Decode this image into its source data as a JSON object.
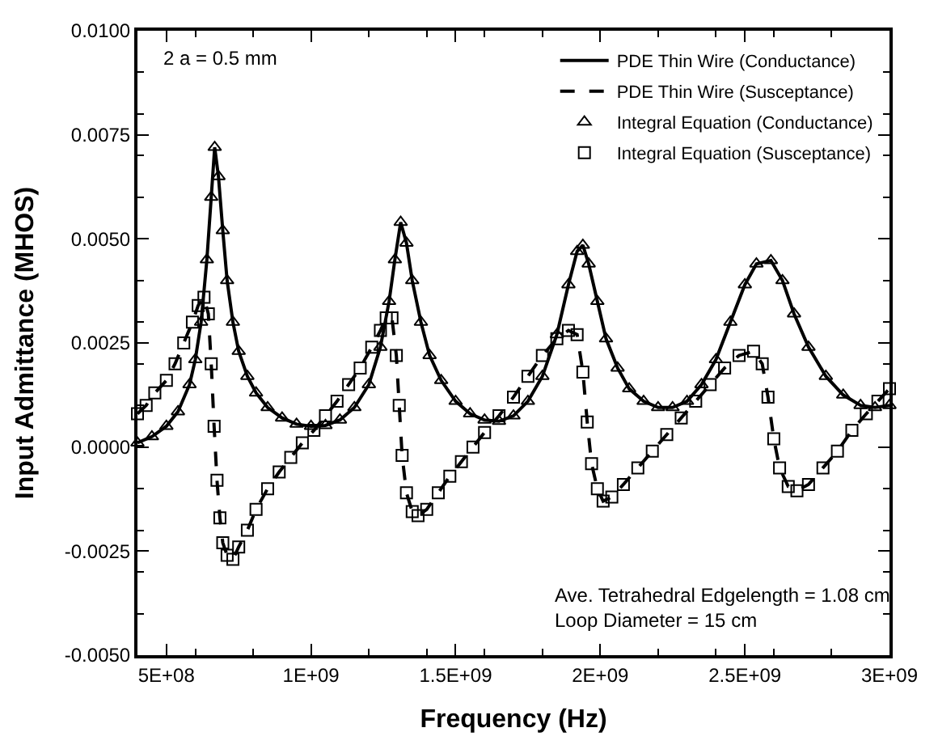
{
  "chart_data": {
    "type": "line",
    "xlabel": "Frequency (Hz)",
    "ylabel": "Input Admittance (MHOS)",
    "xlim": [
      400000000.0,
      3000000000.0
    ],
    "xticks": [
      {
        "value": 500000000.0,
        "label": "5E+08"
      },
      {
        "value": 1000000000.0,
        "label": "1E+09"
      },
      {
        "value": 1500000000.0,
        "label": "1.5E+09"
      },
      {
        "value": 2000000000.0,
        "label": "2E+09"
      },
      {
        "value": 2500000000.0,
        "label": "2.5E+09"
      },
      {
        "value": 3000000000.0,
        "label": "3E+09"
      }
    ],
    "ylim": [
      -0.005,
      0.01
    ],
    "yticks": [
      {
        "value": -0.005,
        "label": "-0.0050"
      },
      {
        "value": -0.0025,
        "label": "-0.0025"
      },
      {
        "value": 0,
        "label": "0.0000"
      },
      {
        "value": 0.0025,
        "label": "0.0025"
      },
      {
        "value": 0.005,
        "label": "0.0050"
      },
      {
        "value": 0.0075,
        "label": "0.0075"
      },
      {
        "value": 0.01,
        "label": "0.0100"
      }
    ],
    "legend": "top right",
    "annotations": [
      "2 a = 0.5 mm",
      "Ave. Tetrahedral Edgelength = 1.08 cm\nLoop Diameter = 15 cm"
    ],
    "series": [
      {
        "name": "PDE Thin Wire (Conductance)",
        "line_style": "solid",
        "marker": "none",
        "color": "#000000",
        "x": [
          400000000.0,
          450000000.0,
          500000000.0,
          540000000.0,
          580000000.0,
          600000000.0,
          620000000.0,
          640000000.0,
          655000000.0,
          667000000.0,
          680000000.0,
          695000000.0,
          710000000.0,
          730000000.0,
          750000000.0,
          780000000.0,
          810000000.0,
          850000000.0,
          900000000.0,
          950000000.0,
          1000000000.0,
          1050000000.0,
          1100000000.0,
          1150000000.0,
          1200000000.0,
          1240000000.0,
          1270000000.0,
          1290000000.0,
          1310000000.0,
          1330000000.0,
          1350000000.0,
          1380000000.0,
          1410000000.0,
          1450000000.0,
          1500000000.0,
          1550000000.0,
          1600000000.0,
          1650000000.0,
          1700000000.0,
          1750000000.0,
          1800000000.0,
          1850000000.0,
          1890000000.0,
          1920000000.0,
          1940000000.0,
          1960000000.0,
          1990000000.0,
          2020000000.0,
          2060000000.0,
          2100000000.0,
          2150000000.0,
          2200000000.0,
          2250000000.0,
          2300000000.0,
          2350000000.0,
          2400000000.0,
          2450000000.0,
          2500000000.0,
          2540000000.0,
          2590000000.0,
          2630000000.0,
          2670000000.0,
          2720000000.0,
          2780000000.0,
          2840000000.0,
          2900000000.0,
          2950000000.0,
          3000000000.0
        ],
        "values": [
          0.0001,
          0.00025,
          0.0005,
          0.00085,
          0.0015,
          0.0021,
          0.003,
          0.0045,
          0.006,
          0.0072,
          0.0065,
          0.0052,
          0.004,
          0.003,
          0.0023,
          0.0017,
          0.0013,
          0.00095,
          0.0007,
          0.00055,
          0.0005,
          0.00052,
          0.00065,
          0.00095,
          0.0015,
          0.0024,
          0.0035,
          0.0045,
          0.0054,
          0.0049,
          0.004,
          0.003,
          0.0022,
          0.0016,
          0.0011,
          0.0008,
          0.00065,
          0.00062,
          0.00075,
          0.0011,
          0.0017,
          0.0027,
          0.0039,
          0.0047,
          0.00485,
          0.0044,
          0.0035,
          0.0026,
          0.0019,
          0.0014,
          0.0011,
          0.00095,
          0.00095,
          0.0011,
          0.0015,
          0.0021,
          0.003,
          0.0039,
          0.0044,
          0.00448,
          0.004,
          0.0032,
          0.0024,
          0.0017,
          0.00125,
          0.001,
          0.00095,
          0.001
        ]
      },
      {
        "name": "PDE Thin Wire (Susceptance)",
        "line_style": "dashed",
        "marker": "none",
        "color": "#000000",
        "x": [
          400000000.0,
          430000000.0,
          460000000.0,
          500000000.0,
          530000000.0,
          560000000.0,
          590000000.0,
          610000000.0,
          630000000.0,
          645000000.0,
          655000000.0,
          665000000.0,
          675000000.0,
          685000000.0,
          695000000.0,
          710000000.0,
          730000000.0,
          750000000.0,
          780000000.0,
          810000000.0,
          850000000.0,
          890000000.0,
          930000000.0,
          970000000.0,
          1010000000.0,
          1050000000.0,
          1090000000.0,
          1130000000.0,
          1170000000.0,
          1210000000.0,
          1240000000.0,
          1260000000.0,
          1280000000.0,
          1295000000.0,
          1305000000.0,
          1315000000.0,
          1330000000.0,
          1350000000.0,
          1370000000.0,
          1400000000.0,
          1440000000.0,
          1480000000.0,
          1520000000.0,
          1560000000.0,
          1600000000.0,
          1650000000.0,
          1700000000.0,
          1750000000.0,
          1800000000.0,
          1850000000.0,
          1890000000.0,
          1920000000.0,
          1940000000.0,
          1955000000.0,
          1970000000.0,
          1990000000.0,
          2010000000.0,
          2040000000.0,
          2080000000.0,
          2130000000.0,
          2180000000.0,
          2230000000.0,
          2280000000.0,
          2330000000.0,
          2380000000.0,
          2430000000.0,
          2480000000.0,
          2530000000.0,
          2560000000.0,
          2580000000.0,
          2600000000.0,
          2620000000.0,
          2650000000.0,
          2680000000.0,
          2720000000.0,
          2770000000.0,
          2820000000.0,
          2870000000.0,
          2920000000.0,
          2960000000.0,
          3000000000.0
        ],
        "values": [
          0.0008,
          0.001,
          0.0013,
          0.0016,
          0.002,
          0.0025,
          0.003,
          0.0034,
          0.0036,
          0.0032,
          0.002,
          0.0005,
          -0.0008,
          -0.0017,
          -0.0023,
          -0.0026,
          -0.0027,
          -0.0024,
          -0.002,
          -0.0015,
          -0.001,
          -0.0006,
          -0.00025,
          0.0001,
          0.0004,
          0.00075,
          0.0011,
          0.0015,
          0.0019,
          0.0024,
          0.0028,
          0.0031,
          0.0031,
          0.0022,
          0.001,
          -0.0002,
          -0.0011,
          -0.00155,
          -0.00165,
          -0.0015,
          -0.0011,
          -0.0007,
          -0.00035,
          0.0,
          0.00035,
          0.00075,
          0.0012,
          0.0017,
          0.0022,
          0.0026,
          0.0028,
          0.0027,
          0.0018,
          0.0006,
          -0.0004,
          -0.001,
          -0.0013,
          -0.0012,
          -0.0009,
          -0.0005,
          -0.0001,
          0.0003,
          0.0007,
          0.0011,
          0.0015,
          0.0019,
          0.0022,
          0.0023,
          0.002,
          0.0012,
          0.0002,
          -0.0005,
          -0.00095,
          -0.00105,
          -0.0009,
          -0.0005,
          -0.0001,
          0.0004,
          0.0008,
          0.0011,
          0.0014
        ]
      },
      {
        "name": "Integral Equation (Conductance)",
        "type": "scatter",
        "marker": "triangle",
        "color": "#000000",
        "x": [
          400000000.0,
          450000000.0,
          500000000.0,
          540000000.0,
          580000000.0,
          600000000.0,
          620000000.0,
          640000000.0,
          655000000.0,
          667000000.0,
          680000000.0,
          695000000.0,
          710000000.0,
          730000000.0,
          750000000.0,
          780000000.0,
          810000000.0,
          850000000.0,
          900000000.0,
          950000000.0,
          1000000000.0,
          1050000000.0,
          1100000000.0,
          1150000000.0,
          1200000000.0,
          1240000000.0,
          1270000000.0,
          1290000000.0,
          1310000000.0,
          1330000000.0,
          1350000000.0,
          1380000000.0,
          1410000000.0,
          1450000000.0,
          1500000000.0,
          1550000000.0,
          1600000000.0,
          1650000000.0,
          1700000000.0,
          1750000000.0,
          1800000000.0,
          1850000000.0,
          1890000000.0,
          1920000000.0,
          1940000000.0,
          1960000000.0,
          1990000000.0,
          2020000000.0,
          2060000000.0,
          2100000000.0,
          2150000000.0,
          2200000000.0,
          2250000000.0,
          2300000000.0,
          2350000000.0,
          2400000000.0,
          2450000000.0,
          2500000000.0,
          2540000000.0,
          2590000000.0,
          2630000000.0,
          2670000000.0,
          2720000000.0,
          2780000000.0,
          2840000000.0,
          2900000000.0,
          2950000000.0,
          3000000000.0
        ],
        "values": [
          0.0001,
          0.00025,
          0.0005,
          0.00085,
          0.0015,
          0.0021,
          0.003,
          0.0045,
          0.006,
          0.0072,
          0.0065,
          0.0052,
          0.004,
          0.003,
          0.0023,
          0.0017,
          0.0013,
          0.00095,
          0.0007,
          0.00055,
          0.0005,
          0.00052,
          0.00065,
          0.00095,
          0.0015,
          0.0024,
          0.0035,
          0.0045,
          0.0054,
          0.0049,
          0.004,
          0.003,
          0.0022,
          0.0016,
          0.0011,
          0.0008,
          0.00065,
          0.00062,
          0.00075,
          0.0011,
          0.0017,
          0.0027,
          0.0039,
          0.0047,
          0.00485,
          0.0044,
          0.0035,
          0.0026,
          0.0019,
          0.0014,
          0.0011,
          0.00095,
          0.00095,
          0.0011,
          0.0015,
          0.0021,
          0.003,
          0.0039,
          0.0044,
          0.00448,
          0.004,
          0.0032,
          0.0024,
          0.0017,
          0.00125,
          0.001,
          0.00095,
          0.001
        ]
      },
      {
        "name": "Integral Equation (Susceptance)",
        "type": "scatter",
        "marker": "square",
        "color": "#000000",
        "x": [
          400000000.0,
          430000000.0,
          460000000.0,
          500000000.0,
          530000000.0,
          560000000.0,
          590000000.0,
          610000000.0,
          630000000.0,
          645000000.0,
          655000000.0,
          665000000.0,
          675000000.0,
          685000000.0,
          695000000.0,
          710000000.0,
          730000000.0,
          750000000.0,
          780000000.0,
          810000000.0,
          850000000.0,
          890000000.0,
          930000000.0,
          970000000.0,
          1010000000.0,
          1050000000.0,
          1090000000.0,
          1130000000.0,
          1170000000.0,
          1210000000.0,
          1240000000.0,
          1260000000.0,
          1280000000.0,
          1295000000.0,
          1305000000.0,
          1315000000.0,
          1330000000.0,
          1350000000.0,
          1370000000.0,
          1400000000.0,
          1440000000.0,
          1480000000.0,
          1520000000.0,
          1560000000.0,
          1600000000.0,
          1650000000.0,
          1700000000.0,
          1750000000.0,
          1800000000.0,
          1850000000.0,
          1890000000.0,
          1920000000.0,
          1940000000.0,
          1955000000.0,
          1970000000.0,
          1990000000.0,
          2010000000.0,
          2040000000.0,
          2080000000.0,
          2130000000.0,
          2180000000.0,
          2230000000.0,
          2280000000.0,
          2330000000.0,
          2380000000.0,
          2430000000.0,
          2480000000.0,
          2530000000.0,
          2560000000.0,
          2580000000.0,
          2600000000.0,
          2620000000.0,
          2650000000.0,
          2680000000.0,
          2720000000.0,
          2770000000.0,
          2820000000.0,
          2870000000.0,
          2920000000.0,
          2960000000.0,
          3000000000.0
        ],
        "values": [
          0.0008,
          0.001,
          0.0013,
          0.0016,
          0.002,
          0.0025,
          0.003,
          0.0034,
          0.0036,
          0.0032,
          0.002,
          0.0005,
          -0.0008,
          -0.0017,
          -0.0023,
          -0.0026,
          -0.0027,
          -0.0024,
          -0.002,
          -0.0015,
          -0.001,
          -0.0006,
          -0.00025,
          0.0001,
          0.0004,
          0.00075,
          0.0011,
          0.0015,
          0.0019,
          0.0024,
          0.0028,
          0.0031,
          0.0031,
          0.0022,
          0.001,
          -0.0002,
          -0.0011,
          -0.00155,
          -0.00165,
          -0.0015,
          -0.0011,
          -0.0007,
          -0.00035,
          0.0,
          0.00035,
          0.00075,
          0.0012,
          0.0017,
          0.0022,
          0.0026,
          0.0028,
          0.0027,
          0.0018,
          0.0006,
          -0.0004,
          -0.001,
          -0.0013,
          -0.0012,
          -0.0009,
          -0.0005,
          -0.0001,
          0.0003,
          0.0007,
          0.0011,
          0.0015,
          0.0019,
          0.0022,
          0.0023,
          0.002,
          0.0012,
          0.0002,
          -0.0005,
          -0.00095,
          -0.00105,
          -0.0009,
          -0.0005,
          -0.0001,
          0.0004,
          0.0008,
          0.0011,
          0.0014
        ]
      }
    ]
  }
}
